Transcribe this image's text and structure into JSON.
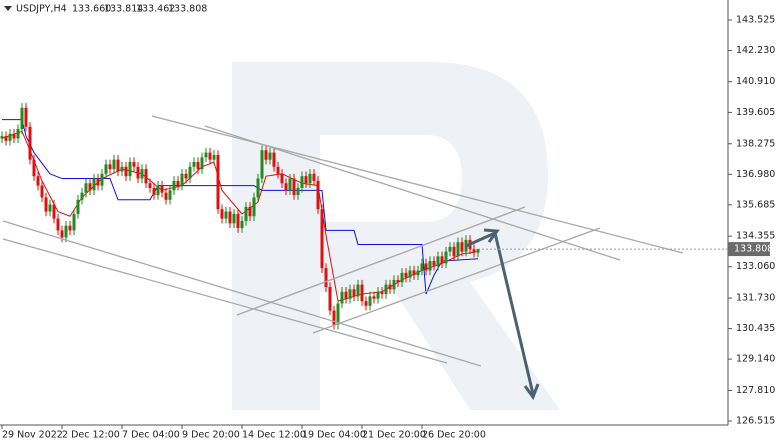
{
  "chart_data": {
    "type": "candlestick",
    "header": {
      "symbol": "USDJPY,H4",
      "open": "133.660",
      "high": "133.814",
      "low": "133.462",
      "close": "133.808"
    },
    "last_price_label": "133.808",
    "ylim": [
      126.345,
      144.374
    ],
    "yticks": [
      143.525,
      {
        "value": 142.23,
        "label": "142.230"
      },
      {
        "value": 140.91,
        "label": "140.910"
      },
      139.605,
      138.275,
      {
        "value": 136.98,
        "label": "136.980"
      },
      135.685,
      134.355,
      {
        "value": 133.06,
        "label": "133.060"
      },
      {
        "value": 131.73,
        "label": "131.730"
      },
      130.435,
      {
        "value": 129.14,
        "label": "129.140"
      },
      {
        "value": 127.81,
        "label": "127.810"
      },
      126.515
    ],
    "categories": [
      "29 Nov 2022",
      null,
      null,
      null,
      null,
      null,
      null,
      null,
      null,
      null,
      null,
      null,
      null,
      null,
      null,
      "2 Dec 12:00",
      null,
      null,
      null,
      null,
      null,
      null,
      null,
      null,
      null,
      null,
      null,
      null,
      null,
      null,
      "7 Dec 04:00",
      null,
      null,
      null,
      null,
      null,
      null,
      null,
      null,
      null,
      null,
      null,
      null,
      null,
      null,
      "9 Dec 20:00",
      null,
      null,
      null,
      null,
      null,
      null,
      null,
      null,
      null,
      null,
      null,
      null,
      null,
      null,
      "14 Dec 12:00",
      null,
      null,
      null,
      null,
      null,
      null,
      null,
      null,
      null,
      null,
      null,
      null,
      null,
      null,
      "19 Dec 04:00",
      null,
      null,
      null,
      null,
      null,
      null,
      null,
      null,
      null,
      null,
      null,
      null,
      null,
      null,
      "21 Dec 20:00",
      null,
      null,
      null,
      null,
      null,
      null,
      null,
      null,
      null,
      null,
      null,
      null,
      null,
      null,
      "26 Dec 20:00",
      null,
      null,
      null,
      null,
      null,
      null,
      null,
      null,
      null,
      null,
      null,
      null,
      null,
      null
    ],
    "open": [
      138.5,
      138.6,
      138.4,
      138.7,
      138.5,
      138.9,
      139.8,
      139.0,
      137.6,
      136.9,
      136.5,
      136.0,
      135.4,
      135.7,
      135.1,
      134.6,
      134.3,
      134.8,
      134.6,
      135.3,
      135.9,
      136.2,
      136.6,
      136.3,
      136.8,
      136.5,
      137.0,
      137.4,
      137.2,
      137.6,
      137.1,
      137.3,
      136.9,
      137.5,
      137.3,
      136.8,
      137.2,
      136.6,
      136.4,
      136.1,
      136.5,
      136.2,
      135.9,
      136.3,
      136.7,
      136.5,
      137.0,
      136.8,
      137.3,
      137.5,
      137.2,
      137.7,
      137.9,
      137.6,
      137.8,
      135.5,
      135.1,
      135.4,
      134.9,
      135.3,
      134.7,
      135.0,
      135.6,
      135.2,
      136.0,
      136.8,
      138.0,
      137.6,
      137.9,
      137.3,
      137.0,
      136.6,
      136.3,
      136.8,
      136.1,
      136.4,
      136.9,
      136.6,
      137.0,
      136.7,
      135.5,
      133.0,
      132.2,
      131.2,
      130.6,
      131.5,
      132.0,
      131.7,
      132.1,
      131.8,
      132.3,
      131.6,
      131.4,
      131.8,
      131.7,
      132.0,
      131.9,
      132.3,
      132.1,
      132.5,
      132.4,
      132.8,
      132.6,
      132.9,
      132.7,
      132.9,
      133.2,
      132.9,
      133.3,
      133.1,
      133.5,
      133.2,
      133.7,
      133.9,
      133.5,
      134.1,
      133.7,
      134.2,
      133.8,
      133.66
    ],
    "high": [
      138.8,
      138.8,
      138.9,
      138.9,
      139.1,
      140.0,
      140.0,
      139.2,
      137.8,
      137.1,
      136.7,
      136.2,
      135.9,
      135.9,
      135.3,
      134.8,
      135.0,
      135.0,
      135.5,
      136.1,
      136.4,
      136.8,
      136.8,
      137.0,
      137.0,
      137.2,
      137.6,
      137.6,
      137.8,
      137.8,
      137.5,
      137.5,
      137.7,
      137.7,
      137.5,
      137.4,
      137.4,
      136.8,
      136.6,
      136.7,
      136.7,
      136.4,
      136.5,
      136.9,
      136.9,
      137.2,
      137.2,
      137.5,
      137.7,
      137.7,
      137.9,
      138.1,
      138.1,
      138.0,
      138.0,
      135.7,
      135.6,
      135.6,
      135.5,
      135.5,
      135.2,
      135.8,
      135.8,
      136.2,
      137.0,
      138.2,
      138.2,
      138.1,
      138.1,
      137.5,
      137.2,
      136.8,
      137.0,
      137.0,
      136.6,
      137.1,
      137.1,
      137.2,
      137.2,
      136.9,
      135.7,
      133.2,
      132.4,
      131.4,
      131.7,
      132.2,
      132.2,
      132.3,
      132.3,
      132.5,
      132.5,
      131.8,
      132.0,
      132.0,
      132.2,
      132.2,
      132.5,
      132.5,
      132.7,
      132.7,
      133.0,
      133.0,
      133.1,
      133.1,
      133.1,
      133.4,
      133.4,
      133.5,
      133.5,
      133.7,
      133.7,
      133.9,
      134.1,
      134.1,
      134.3,
      134.3,
      134.4,
      134.4,
      134.0,
      133.814
    ],
    "low": [
      138.3,
      138.2,
      138.2,
      138.3,
      138.3,
      138.7,
      138.8,
      137.4,
      136.7,
      136.3,
      135.8,
      135.2,
      135.2,
      134.9,
      134.4,
      134.1,
      134.1,
      134.4,
      134.4,
      135.1,
      135.7,
      136.0,
      136.1,
      136.1,
      136.3,
      136.3,
      136.8,
      137.0,
      137.0,
      136.9,
      136.9,
      136.7,
      136.7,
      137.1,
      136.6,
      136.6,
      136.4,
      136.2,
      135.9,
      135.9,
      136.0,
      135.7,
      135.7,
      136.1,
      136.3,
      136.3,
      136.6,
      136.6,
      137.1,
      137.0,
      137.0,
      137.5,
      137.4,
      137.4,
      135.3,
      134.9,
      134.9,
      134.7,
      134.7,
      134.5,
      134.5,
      134.8,
      135.0,
      135.0,
      135.8,
      136.6,
      137.4,
      137.4,
      137.1,
      136.8,
      136.4,
      136.1,
      136.1,
      135.9,
      135.9,
      136.2,
      136.4,
      136.4,
      136.5,
      135.3,
      132.8,
      132.0,
      131.0,
      130.4,
      130.4,
      131.3,
      131.5,
      131.5,
      131.6,
      131.6,
      131.4,
      131.2,
      131.2,
      131.5,
      131.5,
      131.7,
      131.7,
      131.9,
      131.9,
      132.2,
      132.2,
      132.4,
      132.4,
      132.5,
      132.5,
      132.7,
      132.7,
      132.7,
      132.9,
      132.9,
      133.0,
      133.0,
      133.5,
      133.3,
      133.3,
      133.5,
      133.5,
      133.6,
      133.46,
      133.462
    ],
    "close": [
      138.6,
      138.4,
      138.7,
      138.5,
      138.9,
      139.8,
      139.0,
      137.6,
      136.9,
      136.5,
      136.0,
      135.4,
      135.7,
      135.1,
      134.6,
      134.3,
      134.8,
      134.6,
      135.3,
      135.9,
      136.2,
      136.6,
      136.3,
      136.8,
      136.5,
      137.0,
      137.4,
      137.2,
      137.6,
      137.1,
      137.3,
      136.9,
      137.5,
      137.3,
      136.8,
      137.2,
      136.6,
      136.4,
      136.1,
      136.5,
      136.2,
      135.9,
      136.3,
      136.7,
      136.5,
      137.0,
      136.8,
      137.3,
      137.5,
      137.2,
      137.7,
      137.9,
      137.6,
      137.8,
      135.5,
      135.1,
      135.4,
      134.9,
      135.3,
      134.7,
      135.0,
      135.6,
      135.2,
      136.0,
      136.8,
      138.0,
      137.6,
      137.9,
      137.3,
      137.0,
      136.6,
      136.3,
      136.8,
      136.1,
      136.4,
      136.9,
      136.6,
      137.0,
      136.7,
      135.5,
      133.0,
      132.2,
      131.2,
      130.6,
      131.5,
      132.0,
      131.7,
      132.1,
      131.8,
      132.3,
      131.6,
      131.4,
      131.8,
      131.7,
      132.0,
      131.9,
      132.3,
      132.1,
      132.5,
      132.4,
      132.8,
      132.6,
      132.9,
      132.7,
      132.9,
      133.2,
      132.9,
      133.3,
      133.1,
      133.5,
      133.2,
      133.7,
      133.9,
      133.5,
      134.1,
      133.7,
      134.2,
      133.8,
      133.66,
      133.808
    ],
    "up_color": "#1e8c1e",
    "down_color": "#e01010",
    "lines": [
      {
        "color": "#1010e0",
        "x": [
          0,
          5,
          6,
          8,
          12,
          15,
          27,
          29,
          37,
          39,
          63,
          65,
          80,
          81,
          88,
          89,
          105,
          106,
          108,
          110,
          119
        ],
        "values": [
          139.3,
          139.3,
          138.6,
          137.9,
          137.0,
          136.8,
          136.8,
          135.9,
          135.9,
          136.5,
          136.5,
          136.3,
          136.3,
          134.6,
          134.6,
          134.0,
          134.0,
          131.9,
          132.7,
          133.3,
          133.4
        ]
      },
      {
        "color": "#e01010",
        "x": [
          0,
          5,
          7,
          10,
          14,
          17,
          20,
          25,
          30,
          35,
          40,
          45,
          50,
          53,
          55,
          60,
          64,
          66,
          70,
          75,
          79,
          81,
          84,
          90,
          95,
          100,
          105,
          110,
          115,
          119
        ],
        "values": [
          138.5,
          138.8,
          138.0,
          136.7,
          135.4,
          135.2,
          136.0,
          136.8,
          137.2,
          137.0,
          136.3,
          136.5,
          137.3,
          137.5,
          136.3,
          135.3,
          135.8,
          136.9,
          137.0,
          136.6,
          136.5,
          134.4,
          131.6,
          131.9,
          132.0,
          132.5,
          132.9,
          133.2,
          133.6,
          133.7
        ]
      }
    ]
  }
}
